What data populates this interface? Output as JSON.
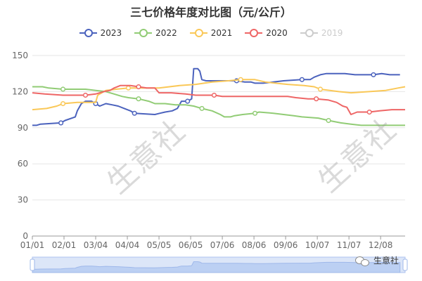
{
  "chart_data": {
    "type": "line",
    "title": "三七价格年度对比图（元/公斤）",
    "xlabel": "",
    "ylabel": "",
    "ylim": [
      0,
      150
    ],
    "yticks": [
      0,
      30,
      60,
      90,
      120,
      150
    ],
    "x_range_days": [
      0,
      365
    ],
    "xticks": [
      {
        "label": "01/01",
        "day": 0
      },
      {
        "label": "02/01",
        "day": 31
      },
      {
        "label": "03/04",
        "day": 62
      },
      {
        "label": "04/04",
        "day": 93
      },
      {
        "label": "05/05",
        "day": 124
      },
      {
        "label": "06/05",
        "day": 155
      },
      {
        "label": "07/06",
        "day": 186
      },
      {
        "label": "08/06",
        "day": 217
      },
      {
        "label": "09/06",
        "day": 248
      },
      {
        "label": "10/07",
        "day": 279
      },
      {
        "label": "11/07",
        "day": 310
      },
      {
        "label": "12/08",
        "day": 341
      }
    ],
    "grid": true,
    "legend_position": "top-center",
    "series": [
      {
        "name": "2023",
        "color": "#4b62bd",
        "visible": true,
        "points": [
          [
            0,
            92
          ],
          [
            4,
            92
          ],
          [
            8,
            93
          ],
          [
            28,
            94
          ],
          [
            32,
            96
          ],
          [
            42,
            99
          ],
          [
            44,
            104
          ],
          [
            48,
            110
          ],
          [
            52,
            112
          ],
          [
            58,
            112
          ],
          [
            62,
            110
          ],
          [
            66,
            108
          ],
          [
            72,
            110
          ],
          [
            78,
            109
          ],
          [
            84,
            108
          ],
          [
            90,
            106
          ],
          [
            96,
            104
          ],
          [
            100,
            102
          ],
          [
            120,
            101
          ],
          [
            125,
            102
          ],
          [
            130,
            103
          ],
          [
            137,
            104
          ],
          [
            142,
            106
          ],
          [
            146,
            112
          ],
          [
            152,
            112
          ],
          [
            156,
            114
          ],
          [
            158,
            139
          ],
          [
            162,
            139
          ],
          [
            164,
            137
          ],
          [
            166,
            130
          ],
          [
            170,
            129
          ],
          [
            200,
            129
          ],
          [
            208,
            128
          ],
          [
            214,
            128
          ],
          [
            218,
            127
          ],
          [
            226,
            127
          ],
          [
            236,
            128
          ],
          [
            246,
            129
          ],
          [
            264,
            130
          ],
          [
            272,
            130
          ],
          [
            276,
            132
          ],
          [
            282,
            134
          ],
          [
            288,
            135
          ],
          [
            306,
            135
          ],
          [
            316,
            134
          ],
          [
            334,
            134
          ],
          [
            342,
            135
          ],
          [
            350,
            134
          ],
          [
            360,
            134
          ]
        ]
      },
      {
        "name": "2022",
        "color": "#91cc75",
        "visible": true,
        "points": [
          [
            0,
            124
          ],
          [
            10,
            124
          ],
          [
            16,
            123
          ],
          [
            30,
            122
          ],
          [
            52,
            122
          ],
          [
            62,
            121
          ],
          [
            72,
            120
          ],
          [
            80,
            118
          ],
          [
            88,
            116
          ],
          [
            94,
            115
          ],
          [
            104,
            114
          ],
          [
            114,
            112
          ],
          [
            120,
            110
          ],
          [
            130,
            110
          ],
          [
            140,
            109
          ],
          [
            150,
            109
          ],
          [
            158,
            108
          ],
          [
            166,
            106
          ],
          [
            176,
            104
          ],
          [
            184,
            101
          ],
          [
            188,
            99
          ],
          [
            194,
            99
          ],
          [
            198,
            100
          ],
          [
            206,
            101
          ],
          [
            218,
            102
          ],
          [
            222,
            103
          ],
          [
            236,
            102
          ],
          [
            246,
            101
          ],
          [
            256,
            100
          ],
          [
            264,
            99
          ],
          [
            280,
            98
          ],
          [
            290,
            96
          ],
          [
            302,
            94
          ],
          [
            312,
            93
          ],
          [
            322,
            92
          ],
          [
            340,
            92
          ],
          [
            365,
            92
          ]
        ]
      },
      {
        "name": "2021",
        "color": "#fac858",
        "visible": true,
        "points": [
          [
            0,
            105
          ],
          [
            14,
            106
          ],
          [
            24,
            108
          ],
          [
            30,
            110
          ],
          [
            44,
            111
          ],
          [
            58,
            111
          ],
          [
            62,
            111
          ],
          [
            64,
            117
          ],
          [
            72,
            121
          ],
          [
            82,
            122
          ],
          [
            94,
            123
          ],
          [
            110,
            123
          ],
          [
            124,
            123
          ],
          [
            144,
            125
          ],
          [
            160,
            126
          ],
          [
            176,
            128
          ],
          [
            192,
            129
          ],
          [
            204,
            130
          ],
          [
            218,
            130
          ],
          [
            228,
            128
          ],
          [
            238,
            127
          ],
          [
            250,
            126
          ],
          [
            266,
            125
          ],
          [
            276,
            124
          ],
          [
            282,
            122
          ],
          [
            300,
            120
          ],
          [
            312,
            119
          ],
          [
            330,
            120
          ],
          [
            346,
            121
          ],
          [
            358,
            123
          ],
          [
            365,
            124
          ]
        ]
      },
      {
        "name": "2020",
        "color": "#ee6666",
        "visible": true,
        "points": [
          [
            0,
            119
          ],
          [
            12,
            118
          ],
          [
            30,
            117
          ],
          [
            52,
            117
          ],
          [
            62,
            118
          ],
          [
            70,
            120
          ],
          [
            76,
            121
          ],
          [
            80,
            123
          ],
          [
            86,
            125
          ],
          [
            96,
            125
          ],
          [
            104,
            124
          ],
          [
            112,
            123
          ],
          [
            120,
            123
          ],
          [
            124,
            119
          ],
          [
            136,
            119
          ],
          [
            150,
            118
          ],
          [
            160,
            117
          ],
          [
            178,
            117
          ],
          [
            186,
            116
          ],
          [
            212,
            116
          ],
          [
            232,
            116
          ],
          [
            250,
            116
          ],
          [
            258,
            115
          ],
          [
            270,
            114
          ],
          [
            278,
            114
          ],
          [
            290,
            113
          ],
          [
            298,
            111
          ],
          [
            304,
            108
          ],
          [
            308,
            107
          ],
          [
            312,
            101
          ],
          [
            318,
            103
          ],
          [
            330,
            103
          ],
          [
            340,
            104
          ],
          [
            352,
            105
          ],
          [
            365,
            105
          ]
        ]
      },
      {
        "name": "2019",
        "color": "#cccccc",
        "visible": false,
        "points": []
      }
    ]
  },
  "watermark": "生意社",
  "wechat_label": "生意社",
  "theme": {
    "axis_color": "#999999",
    "grid_color": "#e6e6e6",
    "label_color": "#666666",
    "zoom_fill": "#dce6f8",
    "zoom_border": "#aec3ef"
  }
}
